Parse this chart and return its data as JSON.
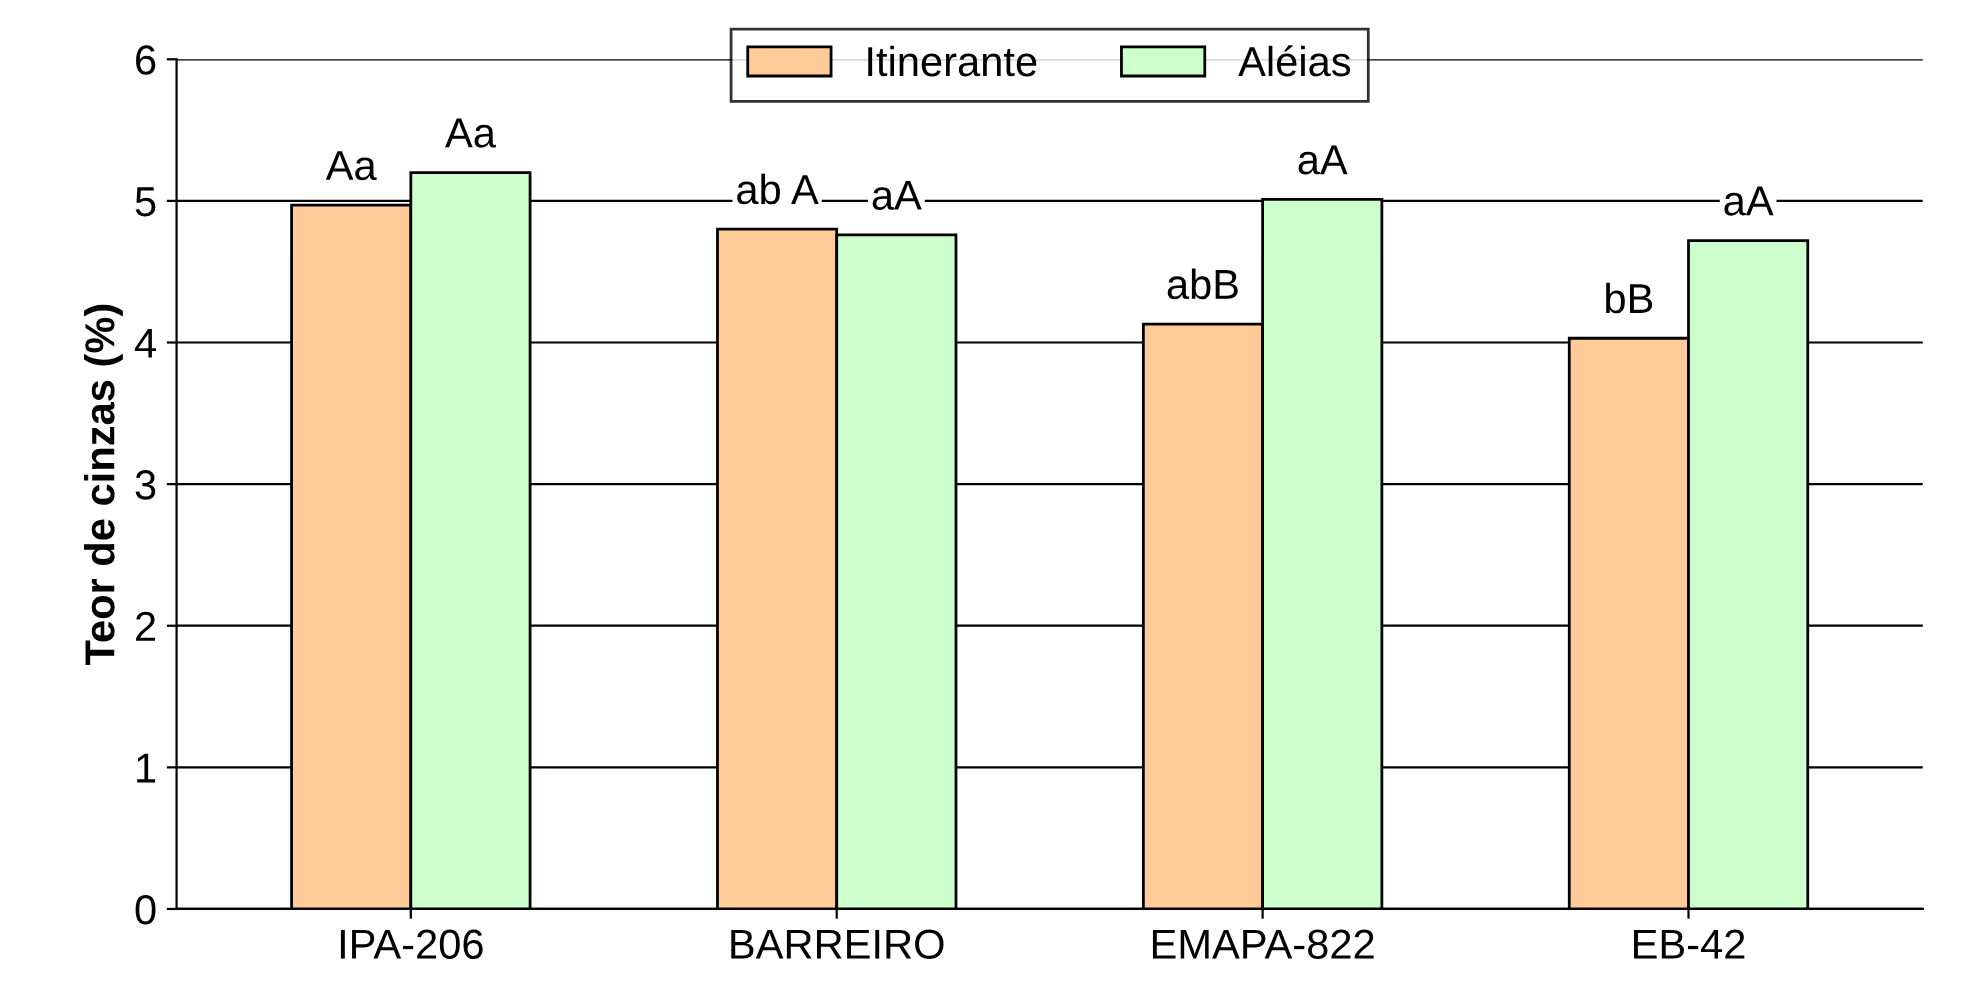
{
  "chart_data": {
    "type": "bar",
    "ylabel": "Teor de cinzas (%)",
    "categories": [
      "IPA-206",
      "BARREIRO",
      "EMAPA-822",
      "EB-42"
    ],
    "series": [
      {
        "name": "Itinerante",
        "color": "#ffcc99",
        "values": [
          4.97,
          4.8,
          4.13,
          4.03
        ],
        "value_labels": [
          "Aa",
          "ab A",
          "abB",
          "bB"
        ]
      },
      {
        "name": "Aléias",
        "color": "#ccffcc",
        "values": [
          5.2,
          4.76,
          5.01,
          4.72
        ],
        "value_labels": [
          "Aa",
          "aA",
          "aA",
          "aA"
        ]
      }
    ],
    "ylim": [
      0,
      6
    ],
    "yticks": [
      0,
      1,
      2,
      3,
      4,
      5,
      6
    ],
    "grid": "y",
    "legend": "top"
  }
}
